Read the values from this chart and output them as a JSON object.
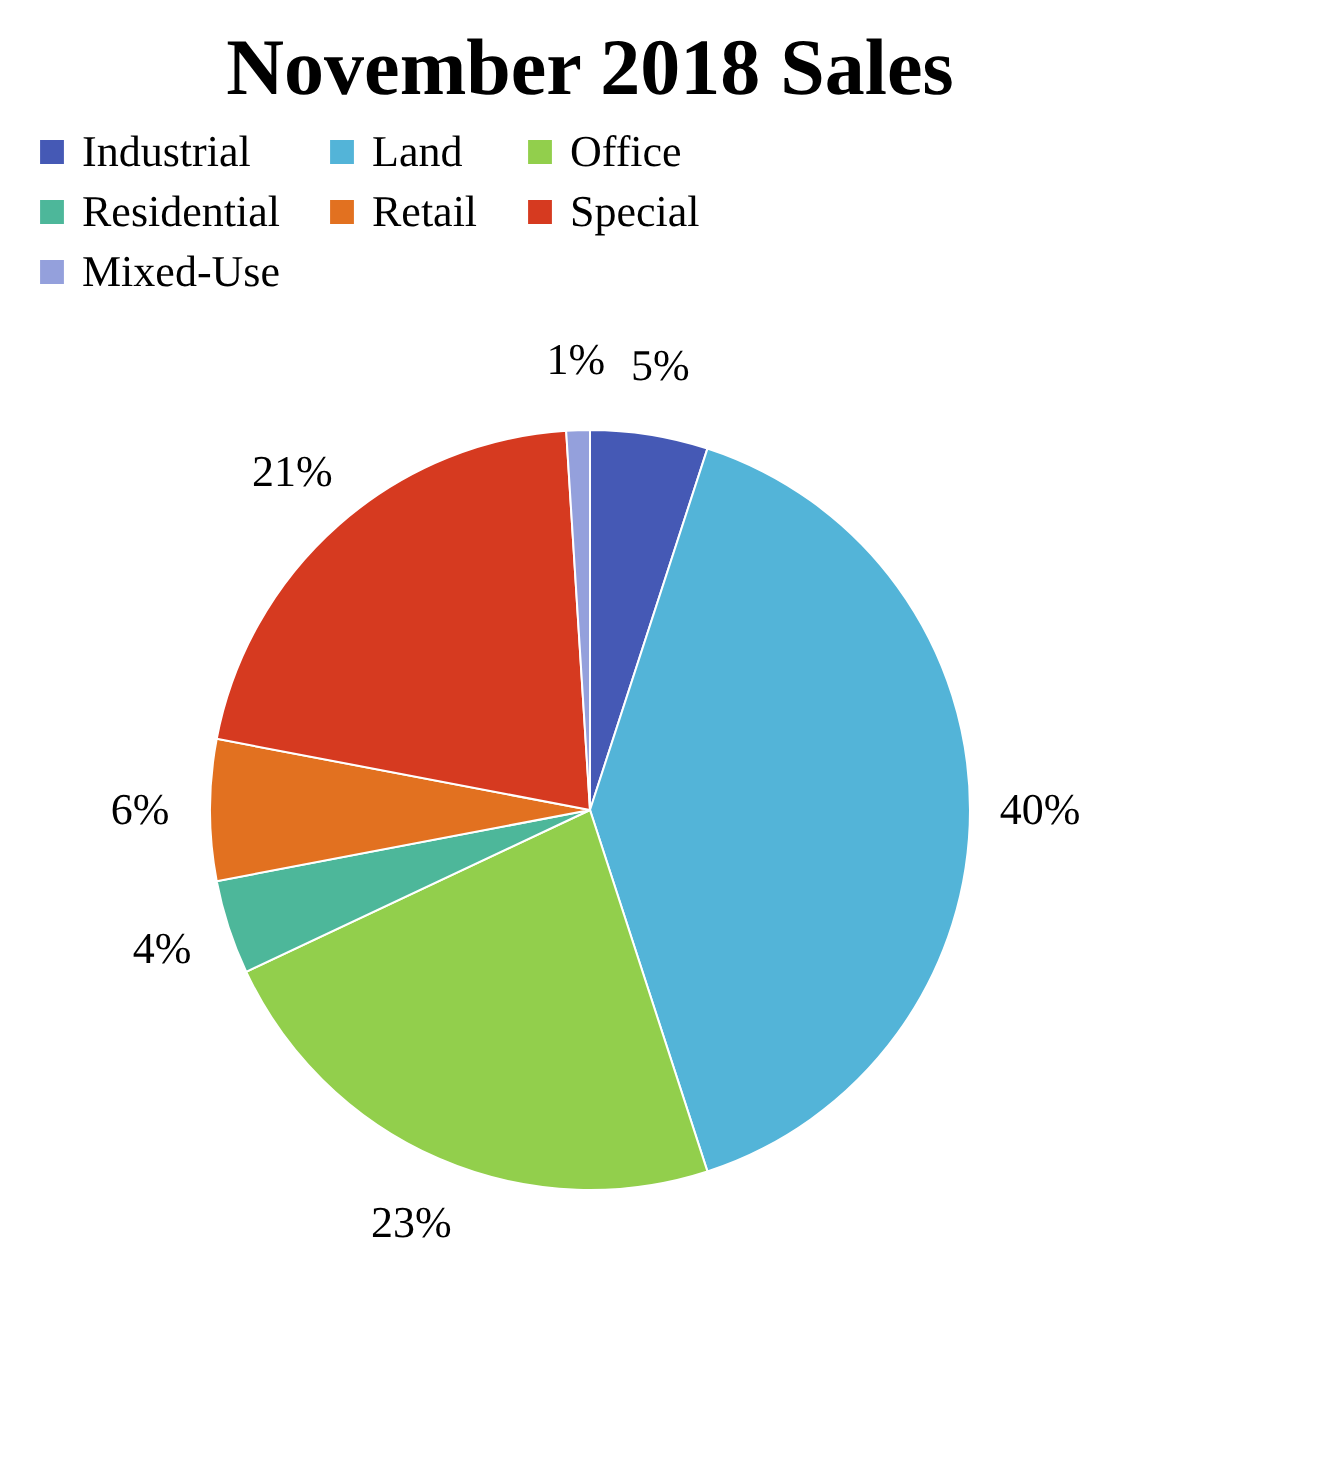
{
  "chart_data": {
    "type": "pie",
    "title": "November 2018 Sales",
    "categories": [
      "Industrial",
      "Land",
      "Office",
      "Residential",
      "Retail",
      "Special",
      "Mixed-Use"
    ],
    "values": [
      5,
      40,
      23,
      4,
      6,
      21,
      1
    ],
    "colors": [
      "#4559b5",
      "#53b4d8",
      "#92cf4c",
      "#4db79a",
      "#e27120",
      "#d63a20",
      "#94a0dc"
    ],
    "value_labels": [
      "5%",
      "40%",
      "23%",
      "4%",
      "6%",
      "21%",
      "1%"
    ],
    "legend": "top"
  }
}
